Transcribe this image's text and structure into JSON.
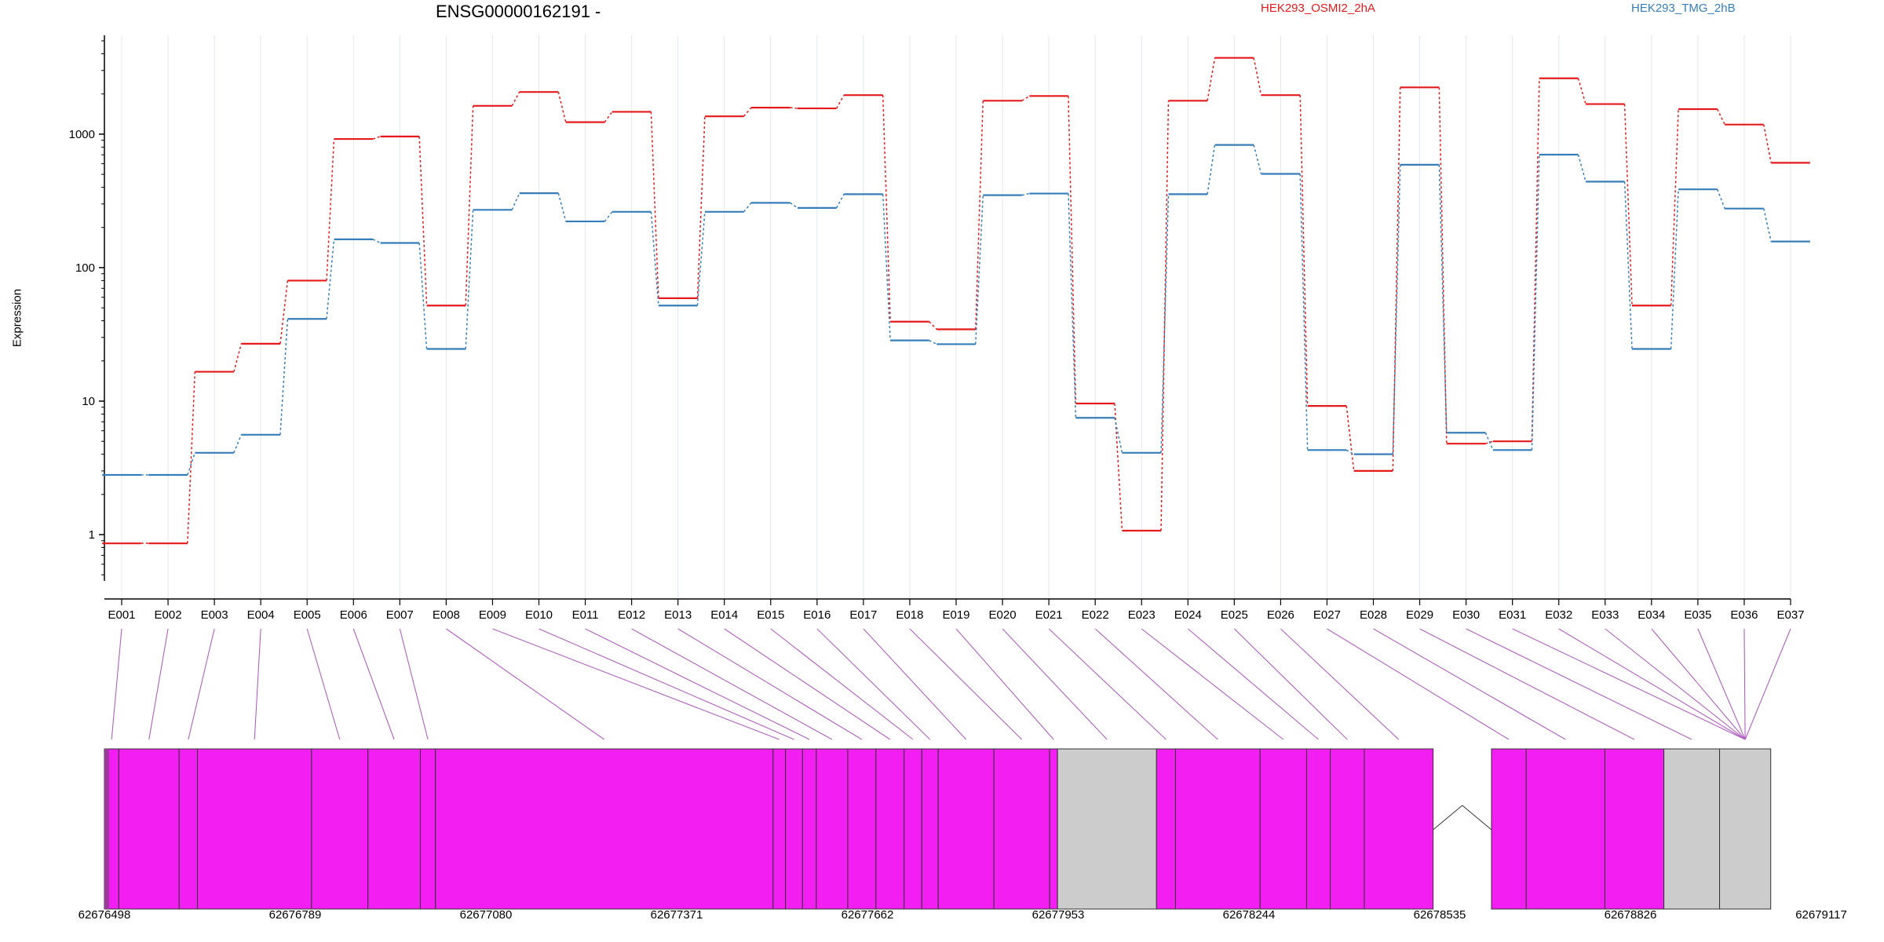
{
  "chart_data": {
    "type": "line",
    "title": "ENSG00000162191 -",
    "ylabel": "Expression",
    "yscale": "log",
    "yticks": [
      1,
      10,
      100,
      1000
    ],
    "ytick_labels": [
      "1",
      "10",
      "100",
      "1000"
    ],
    "ylim": [
      0.45,
      5500
    ],
    "categories": [
      "E001",
      "E002",
      "E003",
      "E004",
      "E005",
      "E006",
      "E007",
      "E008",
      "E009",
      "E010",
      "E011",
      "E012",
      "E013",
      "E014",
      "E015",
      "E016",
      "E017",
      "E018",
      "E019",
      "E020",
      "E021",
      "E022",
      "E023",
      "E024",
      "E025",
      "E026",
      "E027",
      "E028",
      "E029",
      "E030",
      "E031",
      "E032",
      "E033",
      "E034",
      "E035",
      "E036",
      "E037"
    ],
    "series": [
      {
        "name": "HEK293_OSMI2_2hA",
        "color": "#e41a1c",
        "values": [
          0.86,
          0.86,
          16.6,
          26.9,
          80,
          920,
          960,
          52,
          1630,
          2070,
          1230,
          1470,
          59,
          1360,
          1580,
          1560,
          1960,
          39.4,
          34.5,
          1780,
          1930,
          9.6,
          1.07,
          1780,
          3730,
          1960,
          9.2,
          3.0,
          2240,
          4.8,
          5.0,
          2620,
          1680,
          52,
          1540,
          1180,
          610
        ]
      },
      {
        "name": "HEK293_TMG_2hB",
        "color": "#377eb8",
        "values": [
          2.8,
          2.8,
          4.1,
          5.6,
          41.3,
          163,
          153,
          24.6,
          271,
          361,
          222,
          262,
          52,
          262,
          306,
          280,
          355,
          28.5,
          26.7,
          349,
          359,
          7.5,
          4.1,
          355,
          830,
          504,
          4.3,
          4.0,
          590,
          5.8,
          4.3,
          702,
          441,
          24.6,
          386,
          277,
          157
        ]
      }
    ],
    "gene_model": {
      "xlim": [
        62676498,
        62679117
      ],
      "ticks": [
        62676498,
        62676789,
        62677080,
        62677371,
        62677662,
        62677953,
        62678244,
        62678535,
        62678826,
        62679117
      ],
      "tick_labels": [
        "62676498",
        "62676789",
        "62677080",
        "62677371",
        "62677662",
        "62677953",
        "62678244",
        "62678535",
        "62678826",
        "62679117"
      ],
      "exon_color": "#f21ef2",
      "utr_color": "#cccccc",
      "exon_connector_color": "#b060c0",
      "blocks": [
        [
          62676498,
          62676520,
          "exon"
        ],
        [
          62676520,
          62676612,
          "exon"
        ],
        [
          62676612,
          62676640,
          "exon"
        ],
        [
          62676640,
          62676814,
          "exon"
        ],
        [
          62676814,
          62676900,
          "exon"
        ],
        [
          62676900,
          62676980,
          "exon"
        ],
        [
          62676980,
          62677003,
          "exon"
        ],
        [
          62677003,
          62677518,
          "exon"
        ],
        [
          62677518,
          62677537,
          "exon"
        ],
        [
          62677537,
          62677563,
          "exon"
        ],
        [
          62677563,
          62677584,
          "exon"
        ],
        [
          62677584,
          62677632,
          "exon"
        ],
        [
          62677632,
          62677675,
          "exon"
        ],
        [
          62677675,
          62677718,
          "exon"
        ],
        [
          62677718,
          62677745,
          "exon"
        ],
        [
          62677745,
          62677770,
          "exon"
        ],
        [
          62677770,
          62677855,
          "exon"
        ],
        [
          62677855,
          62677940,
          "exon"
        ],
        [
          62677940,
          62677952,
          "exon"
        ],
        [
          62677952,
          62678103,
          "utr"
        ],
        [
          62678103,
          62678132,
          "exon"
        ],
        [
          62678132,
          62678261,
          "exon"
        ],
        [
          62678261,
          62678332,
          "exon"
        ],
        [
          62678332,
          62678368,
          "exon"
        ],
        [
          62678368,
          62678420,
          "exon"
        ],
        [
          62678420,
          62678525,
          "exon"
        ],
        [
          62678614,
          62678667,
          "exon"
        ],
        [
          62678667,
          62678787,
          "exon"
        ],
        [
          62678787,
          62678877,
          "exon"
        ],
        [
          62678877,
          62678962,
          "utr"
        ],
        [
          62678962,
          62679040,
          "utr"
        ]
      ],
      "intron": [
        62678525,
        62678614
      ]
    }
  }
}
